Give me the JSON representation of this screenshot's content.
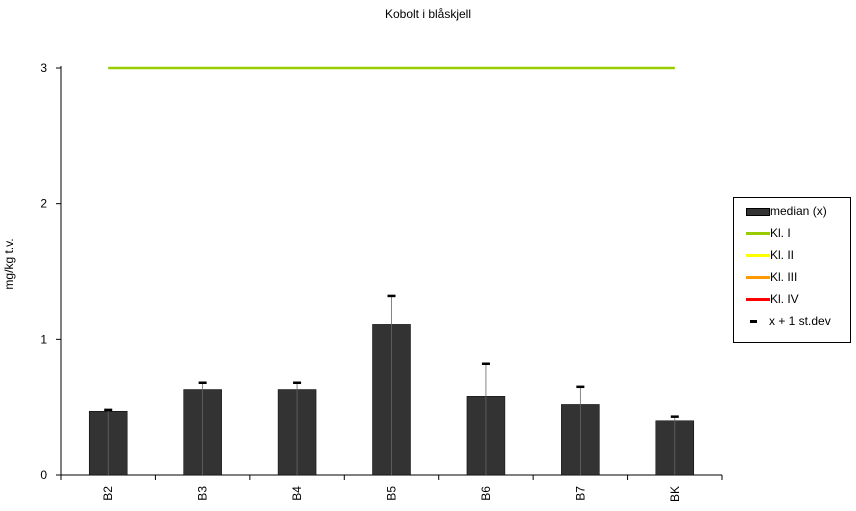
{
  "chart_data": {
    "type": "bar",
    "title": "Kobolt i blåskjell",
    "xlabel": "",
    "ylabel": "mg/kg t.v.",
    "categories": [
      "B2",
      "B3",
      "B4",
      "B5",
      "B6",
      "B7",
      "BK"
    ],
    "series": [
      {
        "name": "median (x)",
        "values": [
          0.47,
          0.63,
          0.63,
          1.11,
          0.58,
          0.52,
          0.4
        ],
        "color": "#333333"
      },
      {
        "name": "x + 1 st.dev",
        "values": [
          0.48,
          0.68,
          0.68,
          1.32,
          0.82,
          0.65,
          0.43
        ],
        "kind": "error-marker"
      }
    ],
    "class_lines": [
      {
        "name": "Kl. I",
        "value": 3,
        "color": "#99CC00"
      },
      {
        "name": "Kl. II",
        "color": "#FFFF00"
      },
      {
        "name": "Kl. III",
        "color": "#FF9900"
      },
      {
        "name": "Kl. IV",
        "color": "#FF0000"
      }
    ],
    "ylim": [
      0,
      3
    ],
    "yticks": [
      0,
      1,
      2,
      3
    ],
    "grid": false,
    "legend_position": "right"
  }
}
